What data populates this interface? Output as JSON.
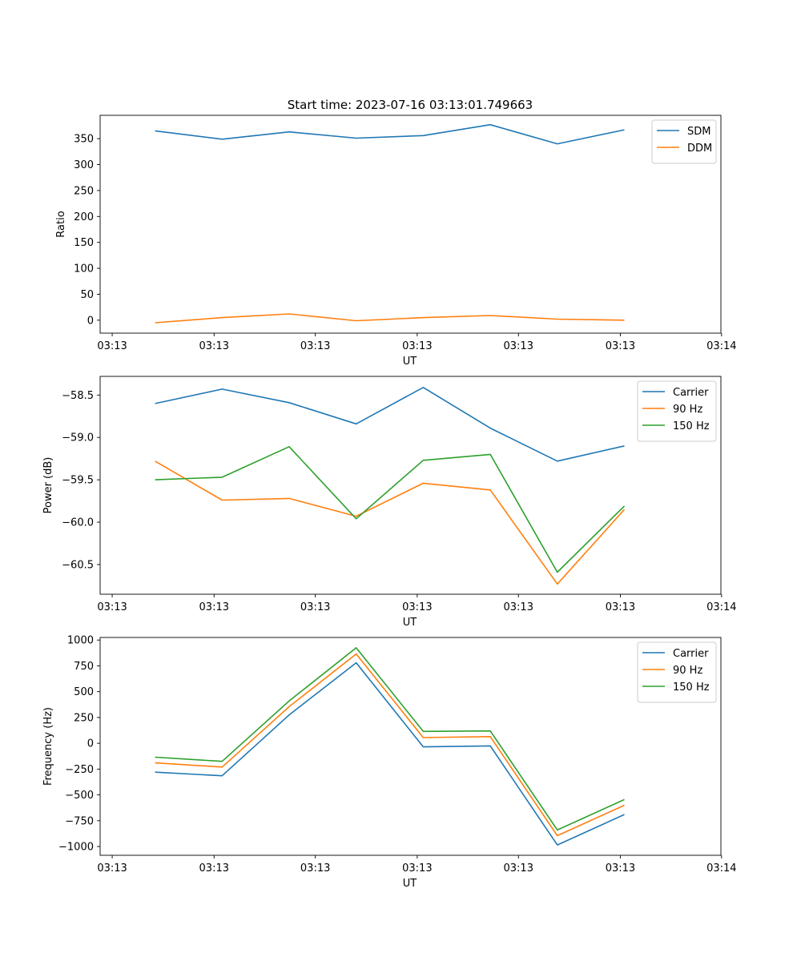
{
  "figure": {
    "title": "Start time: 2023-07-16 03:13:01.749663"
  },
  "chart_data": [
    {
      "type": "line",
      "xlabel": "UT",
      "ylabel": "Ratio",
      "x": [
        1,
        2,
        3,
        4,
        5,
        6,
        7,
        8
      ],
      "xlim": [
        0.18,
        9.44
      ],
      "ylim": [
        -25,
        395
      ],
      "xticks": [
        0.36,
        1.88,
        3.39,
        4.91,
        6.42,
        7.94,
        9.45
      ],
      "xtick_labels": [
        "03:13",
        "03:13",
        "03:13",
        "03:13",
        "03:13",
        "03:13",
        "03:14"
      ],
      "yticks": [
        0,
        50,
        100,
        150,
        200,
        250,
        300,
        350
      ],
      "ytick_labels": [
        "0",
        "50",
        "100",
        "150",
        "200",
        "250",
        "300",
        "350"
      ],
      "legend_position": "top-right",
      "series": [
        {
          "name": "SDM",
          "color": "#1f77b4",
          "values": [
            365,
            349,
            363,
            351,
            356,
            377,
            340,
            367
          ]
        },
        {
          "name": "DDM",
          "color": "#ff7f0e",
          "values": [
            -5,
            5,
            12,
            -1,
            5,
            9,
            2,
            0
          ]
        }
      ]
    },
    {
      "type": "line",
      "xlabel": "UT",
      "ylabel": "Power (dB)",
      "x": [
        1,
        2,
        3,
        4,
        5,
        6,
        7,
        8
      ],
      "xlim": [
        0.18,
        9.44
      ],
      "ylim": [
        -60.85,
        -58.28
      ],
      "xticks": [
        0.36,
        1.88,
        3.39,
        4.91,
        6.42,
        7.94,
        9.45
      ],
      "xtick_labels": [
        "03:13",
        "03:13",
        "03:13",
        "03:13",
        "03:13",
        "03:13",
        "03:14"
      ],
      "yticks": [
        -58.5,
        -59.0,
        -59.5,
        -60.0,
        -60.5
      ],
      "ytick_labels": [
        "−58.5",
        "−59.0",
        "−59.5",
        "−60.0",
        "−60.5"
      ],
      "legend_position": "top-right",
      "series": [
        {
          "name": "Carrier",
          "color": "#1f77b4",
          "values": [
            -58.6,
            -58.43,
            -58.59,
            -58.84,
            -58.41,
            -58.89,
            -59.28,
            -59.1
          ]
        },
        {
          "name": "90 Hz",
          "color": "#ff7f0e",
          "values": [
            -59.28,
            -59.74,
            -59.72,
            -59.93,
            -59.54,
            -59.62,
            -60.73,
            -59.85
          ]
        },
        {
          "name": "150 Hz",
          "color": "#2ca02c",
          "values": [
            -59.5,
            -59.47,
            -59.11,
            -59.96,
            -59.27,
            -59.2,
            -60.59,
            -59.81
          ]
        }
      ]
    },
    {
      "type": "line",
      "xlabel": "UT",
      "ylabel": "Frequency (Hz)",
      "x": [
        1,
        2,
        3,
        4,
        5,
        6,
        7,
        8
      ],
      "xlim": [
        0.18,
        9.44
      ],
      "ylim": [
        -1085,
        1025
      ],
      "xticks": [
        0.36,
        1.88,
        3.39,
        4.91,
        6.42,
        7.94,
        9.45
      ],
      "xtick_labels": [
        "03:13",
        "03:13",
        "03:13",
        "03:13",
        "03:13",
        "03:13",
        "03:14"
      ],
      "yticks": [
        1000,
        750,
        500,
        250,
        0,
        -250,
        -500,
        -750,
        -1000
      ],
      "ytick_labels": [
        "1000",
        "750",
        "500",
        "250",
        "0",
        "−250",
        "−500",
        "−750",
        "−1000"
      ],
      "legend_position": "top-right",
      "series": [
        {
          "name": "Carrier",
          "color": "#1f77b4",
          "values": [
            -280,
            -315,
            275,
            780,
            -35,
            -25,
            -985,
            -690
          ]
        },
        {
          "name": "90 Hz",
          "color": "#ff7f0e",
          "values": [
            -190,
            -230,
            355,
            865,
            55,
            65,
            -895,
            -600
          ]
        },
        {
          "name": "150 Hz",
          "color": "#2ca02c",
          "values": [
            -135,
            -175,
            410,
            925,
            115,
            120,
            -840,
            -545
          ]
        }
      ]
    }
  ]
}
